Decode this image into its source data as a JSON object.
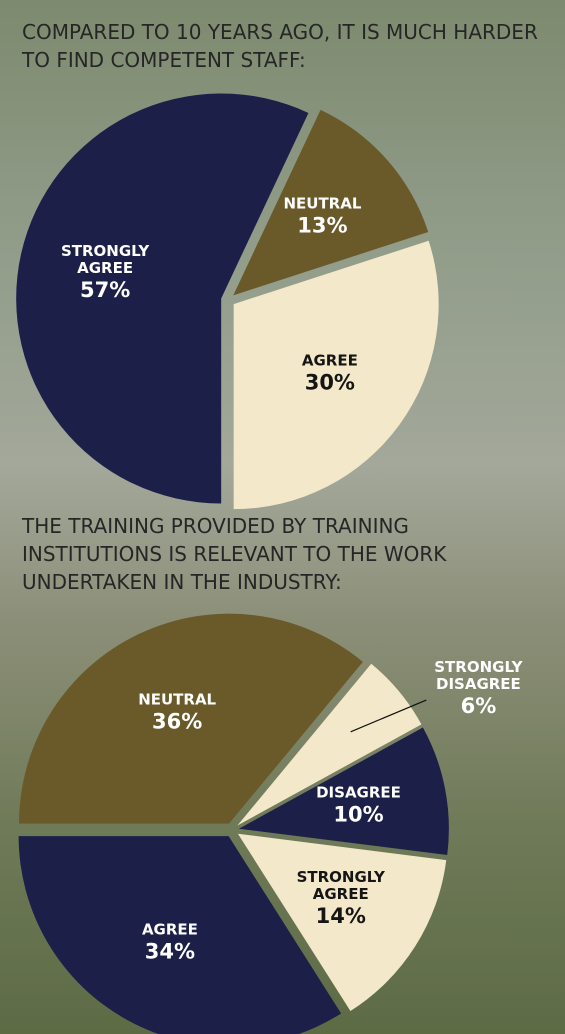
{
  "chart_data": [
    {
      "type": "pie",
      "title": "COMPARED TO 10 YEARS AGO, IT IS MUCH HARDER TO FIND COMPETENT STAFF:",
      "categories": [
        "STRONGLY AGREE",
        "NEUTRAL",
        "AGREE"
      ],
      "values": [
        57,
        13,
        30
      ],
      "value_labels": [
        "57%",
        "13%",
        "30%"
      ],
      "colors": [
        "#1c2048",
        "#6a5a2a",
        "#f4e8ca"
      ]
    },
    {
      "type": "pie",
      "title": "THE TRAINING PROVIDED BY TRAINING INSTITUTIONS IS RELEVANT TO THE WORK UNDERTAKEN IN THE INDUSTRY:",
      "categories": [
        "NEUTRAL",
        "STRONGLY DISAGREE",
        "DISAGREE",
        "STRONGLY AGREE",
        "AGREE"
      ],
      "values": [
        36,
        6,
        10,
        14,
        34
      ],
      "value_labels": [
        "36%",
        "6%",
        "10%",
        "14%",
        "34%"
      ],
      "colors": [
        "#6a5a2a",
        "#f4e8ca",
        "#1c2048",
        "#f4e8ca",
        "#1c2048"
      ]
    }
  ]
}
